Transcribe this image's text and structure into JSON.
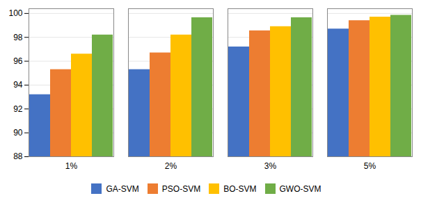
{
  "chart_data": {
    "type": "bar",
    "categories": [
      "1%",
      "2%",
      "3%",
      "5%"
    ],
    "series": [
      {
        "name": "GA-SVM",
        "color": "#4472C4",
        "values": [
          93.2,
          95.3,
          97.2,
          98.7
        ]
      },
      {
        "name": "PSO-SVM",
        "color": "#ED7D31",
        "values": [
          95.3,
          96.7,
          98.55,
          99.4
        ]
      },
      {
        "name": "BO-SVM",
        "color": "#FFC000",
        "values": [
          96.6,
          98.2,
          98.9,
          99.7
        ]
      },
      {
        "name": "GWO-SVM",
        "color": "#70AD47",
        "values": [
          98.2,
          99.65,
          99.65,
          99.85
        ]
      }
    ],
    "ylim": [
      88,
      100.4
    ],
    "yticks": [
      88,
      90,
      92,
      94,
      96,
      98,
      100
    ],
    "grid": true,
    "legend": "bottom"
  }
}
